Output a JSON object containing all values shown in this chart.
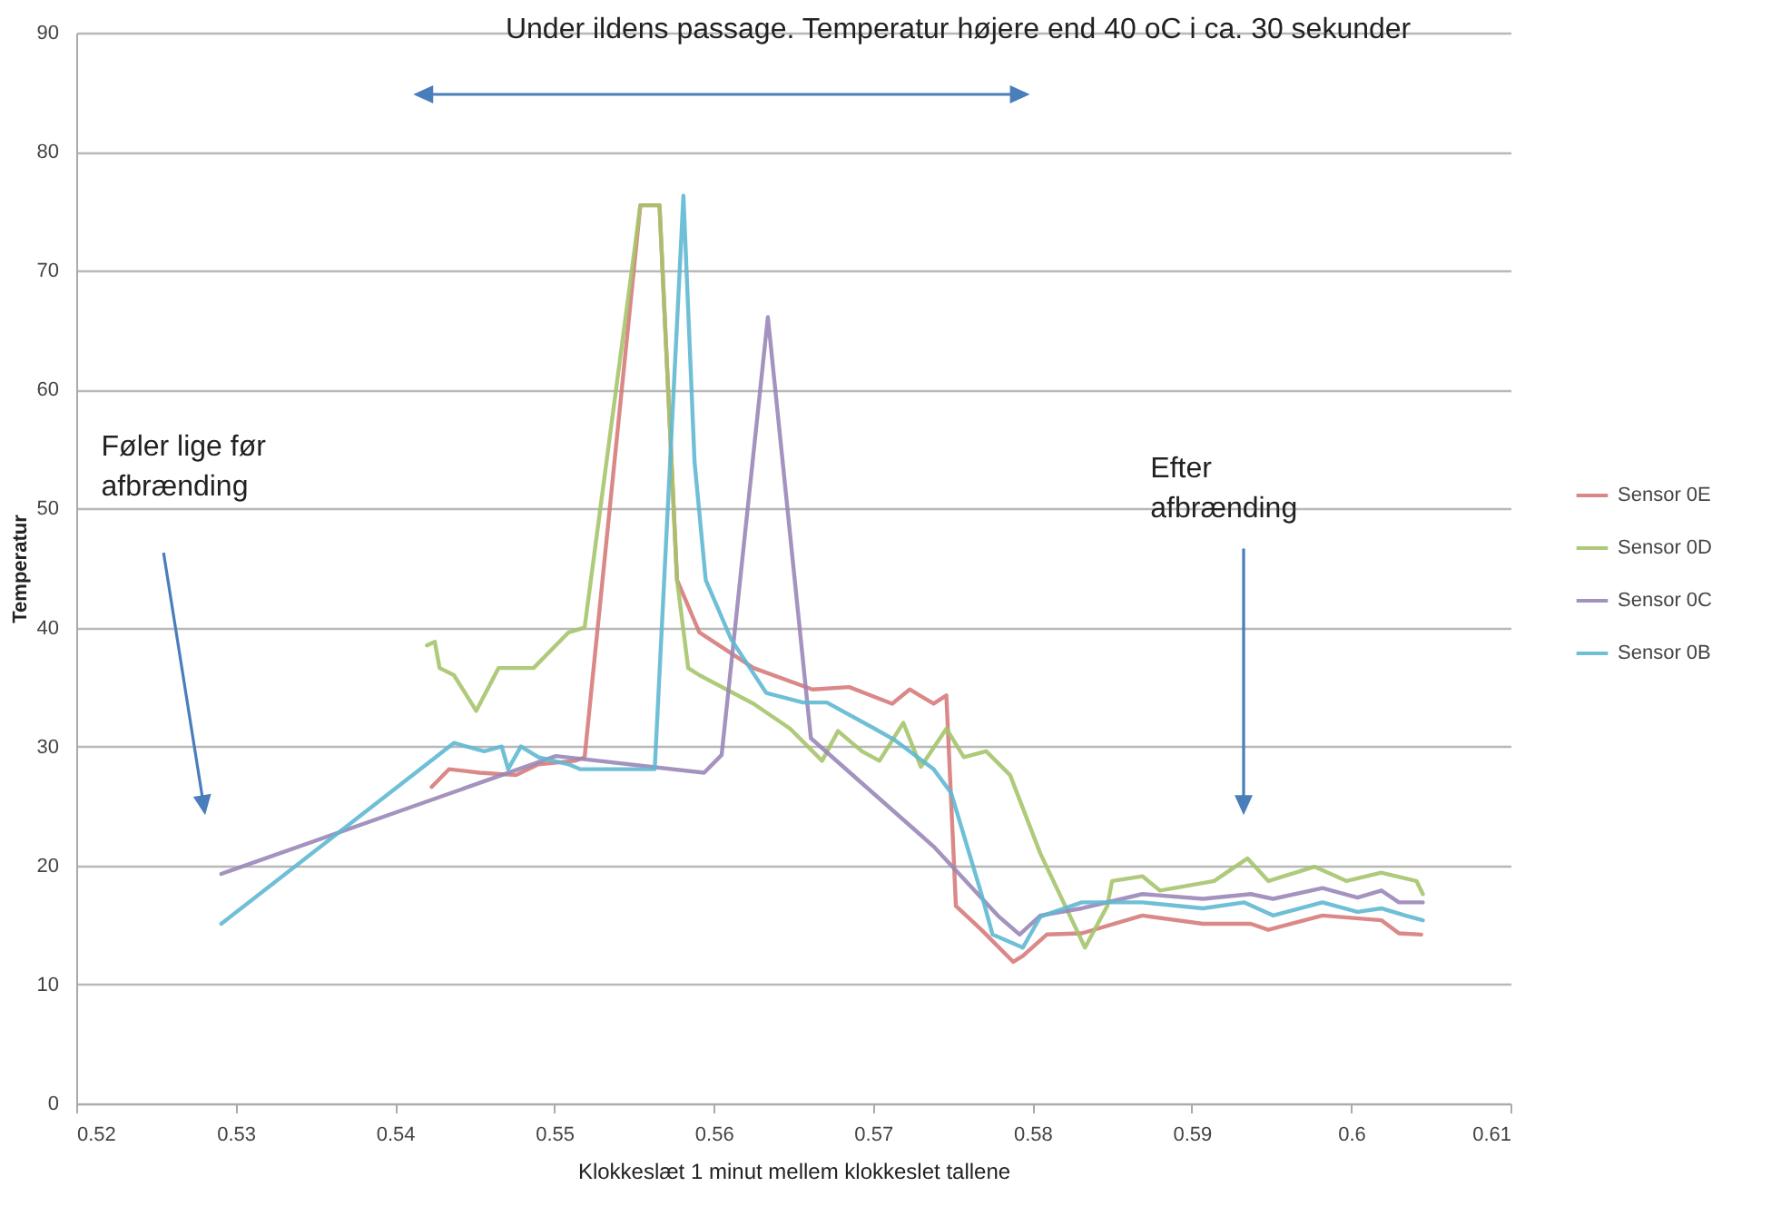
{
  "chart_data": {
    "type": "line",
    "xlabel": "Klokkeslæt   1 minut mellem klokkeslet tallene",
    "ylabel": "Temperatur",
    "xlim": [
      0.52,
      0.61
    ],
    "xticks": [
      0.52,
      0.53,
      0.54,
      0.55,
      0.56,
      0.57,
      0.58,
      0.59,
      0.6,
      0.61
    ],
    "ylim": [
      0,
      90
    ],
    "yticks": [
      0,
      10,
      20,
      30,
      40,
      50,
      60,
      70,
      80,
      90
    ],
    "grid": "y",
    "legend": "right",
    "marker": "none",
    "line_style": "solid",
    "annotations": [
      "Under ildens passage. Temperatur højere end 40 oC i ca. 30 sekunder",
      "Føler lige før afbrænding",
      "Efter afbrænding"
    ],
    "series": [
      {
        "name": "Sensor 0E",
        "color": "#d67b7b",
        "x": [
          0.5423,
          0.5434,
          0.5453,
          0.5476,
          0.549,
          0.5513,
          0.5519,
          0.5554,
          0.5566,
          0.5577,
          0.5591,
          0.5625,
          0.5662,
          0.5685,
          0.5712,
          0.5723,
          0.5738,
          0.5746,
          0.5752,
          0.5768,
          0.5788,
          0.5794,
          0.5809,
          0.5831,
          0.5869,
          0.5907,
          0.5937,
          0.5948,
          0.5982,
          0.6019,
          0.603,
          0.6044
        ],
        "values": [
          26.6,
          28.1,
          27.8,
          27.6,
          28.5,
          28.8,
          29.1,
          75.5,
          75.5,
          44,
          39.6,
          36.6,
          34.8,
          35,
          33.6,
          34.8,
          33.6,
          34.3,
          16.6,
          14.6,
          11.9,
          12.4,
          14.2,
          14.3,
          15.8,
          15.1,
          15.1,
          14.6,
          15.8,
          15.4,
          14.3,
          14.2
        ]
      },
      {
        "name": "Sensor 0D",
        "color": "#a6c46c",
        "x": [
          0.542,
          0.5425,
          0.5428,
          0.5437,
          0.5451,
          0.5465,
          0.5487,
          0.5509,
          0.5519,
          0.5554,
          0.5566,
          0.5577,
          0.5584,
          0.5591,
          0.5625,
          0.5648,
          0.5668,
          0.5678,
          0.5693,
          0.5704,
          0.5719,
          0.573,
          0.5746,
          0.5757,
          0.5771,
          0.5786,
          0.5805,
          0.5833,
          0.5847,
          0.585,
          0.5869,
          0.588,
          0.5914,
          0.5935,
          0.5948,
          0.5977,
          0.5997,
          0.6019,
          0.6041,
          0.6045
        ],
        "values": [
          38.5,
          38.8,
          36.6,
          36,
          33,
          36.6,
          36.6,
          39.6,
          40,
          75.5,
          75.5,
          44,
          36.6,
          36,
          33.6,
          31.5,
          28.8,
          31.3,
          29.6,
          28.8,
          32,
          28.3,
          31.5,
          29.1,
          29.6,
          27.6,
          21,
          13.1,
          16.6,
          18.7,
          19.1,
          17.9,
          18.7,
          20.6,
          18.7,
          19.9,
          18.7,
          19.4,
          18.7,
          17.6
        ]
      },
      {
        "name": "Sensor 0C",
        "color": "#9a86b8",
        "x": [
          0.5291,
          0.5501,
          0.5594,
          0.5605,
          0.5634,
          0.5661,
          0.5738,
          0.5779,
          0.5792,
          0.5805,
          0.5831,
          0.5869,
          0.5907,
          0.5937,
          0.5951,
          0.5982,
          0.6004,
          0.6019,
          0.603,
          0.6045
        ],
        "values": [
          19.3,
          29.2,
          27.8,
          29.3,
          66.1,
          30.7,
          21.6,
          15.7,
          14.2,
          15.8,
          16.4,
          17.6,
          17.2,
          17.6,
          17.2,
          18.1,
          17.3,
          17.9,
          16.9,
          16.9
        ]
      },
      {
        "name": "Sensor 0B",
        "color": "#5fb8d2",
        "x": [
          0.5291,
          0.5437,
          0.5456,
          0.5467,
          0.5471,
          0.5479,
          0.549,
          0.5509,
          0.5516,
          0.5563,
          0.5581,
          0.5588,
          0.5595,
          0.5611,
          0.5633,
          0.5656,
          0.5671,
          0.5701,
          0.5713,
          0.5738,
          0.5749,
          0.5768,
          0.5775,
          0.5794,
          0.5805,
          0.5831,
          0.5869,
          0.5907,
          0.5933,
          0.5951,
          0.5982,
          0.6004,
          0.6019,
          0.6034,
          0.6045
        ],
        "values": [
          15.1,
          30.3,
          29.6,
          30,
          28.1,
          30,
          29.1,
          28.5,
          28.1,
          28.1,
          76.3,
          53.9,
          44,
          39,
          34.5,
          33.7,
          33.7,
          31.5,
          30.6,
          28.1,
          26.1,
          17.6,
          14.2,
          13.1,
          15.7,
          16.9,
          16.9,
          16.4,
          16.9,
          15.8,
          16.9,
          16.1,
          16.4,
          15.8,
          15.4
        ]
      }
    ]
  }
}
